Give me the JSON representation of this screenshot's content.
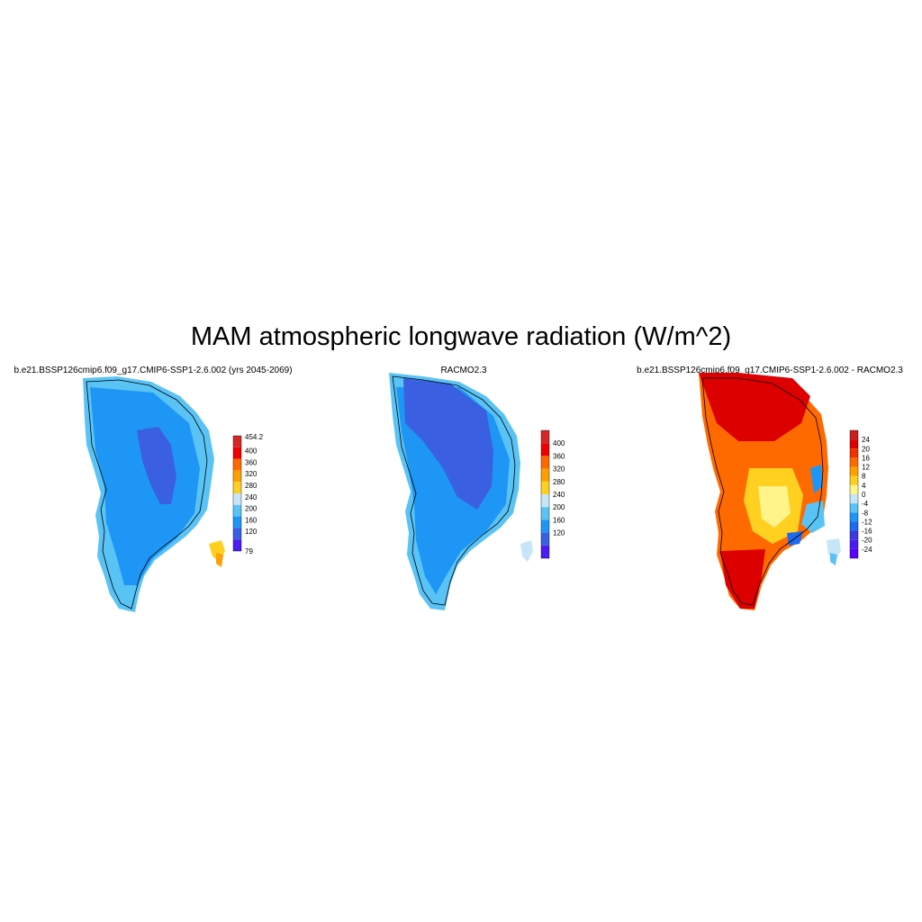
{
  "title": "MAM atmospheric longwave radiation (W/m^2)",
  "panels": [
    {
      "id": "model",
      "title": "b.e21.BSSP126cmip6.f09_g17.CMIP6-SSP1-2.6.002 (yrs 2045-2069)",
      "colorbar": {
        "labels": [
          "454.2",
          "400",
          "360",
          "320",
          "280",
          "240",
          "200",
          "160",
          "120",
          "79"
        ],
        "colors": [
          "#d62728",
          "#ee0000",
          "#ff6a00",
          "#ff9f00",
          "#ffd020",
          "#c6e6f8",
          "#5ac3f5",
          "#1e96f5",
          "#3a5fe0",
          "#4a1cf0"
        ]
      }
    },
    {
      "id": "obs",
      "title": "RACMO2.3",
      "colorbar": {
        "labels": [
          "400",
          "360",
          "320",
          "280",
          "240",
          "200",
          "160",
          "120"
        ],
        "colors": [
          "#d62728",
          "#ee0000",
          "#ff6a00",
          "#ff9f00",
          "#ffd020",
          "#c6e6f8",
          "#5ac3f5",
          "#1e96f5",
          "#3a5fe0",
          "#4a1cf0"
        ]
      }
    },
    {
      "id": "diff",
      "title": "b.e21.BSSP126cmip6.f09_g17.CMIP6-SSP1-2.6.002 - RACMO2.3",
      "colorbar": {
        "labels": [
          "24",
          "20",
          "16",
          "12",
          "8",
          "4",
          "0",
          "-4",
          "-8",
          "-12",
          "-16",
          "-20",
          "-24"
        ],
        "colors": [
          "#c81e1e",
          "#dd0000",
          "#ee3300",
          "#ff6a00",
          "#ff9f00",
          "#ffd020",
          "#fff48a",
          "#c6e6f8",
          "#5ac3f5",
          "#1e96f5",
          "#1e6af0",
          "#3a3ae0",
          "#4a1cf0",
          "#5a00ff"
        ]
      }
    }
  ]
}
